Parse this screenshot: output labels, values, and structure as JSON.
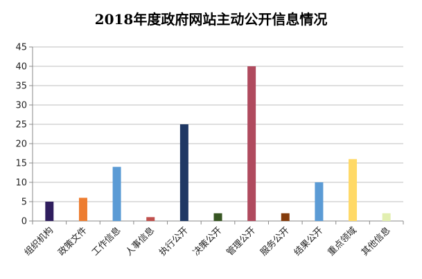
{
  "chart_data": {
    "type": "bar",
    "title": "2018年度政府网站主动公开信息情况",
    "categories": [
      "组织机构",
      "政策文件",
      "工作信息",
      "人事信息",
      "执行公开",
      "决策公开",
      "管理公开",
      "服务公开",
      "结果公开",
      "重点领域",
      "其他信息"
    ],
    "values": [
      5,
      6,
      14,
      1,
      25,
      2,
      40,
      2,
      10,
      16,
      2
    ],
    "colors": [
      "#2f1e5e",
      "#ed7d31",
      "#5b9bd5",
      "#c0504d",
      "#1f3864",
      "#375623",
      "#b04a5e",
      "#843c0c",
      "#5b9bd5",
      "#ffd966",
      "#e2efb0"
    ],
    "ylim": [
      0,
      45
    ],
    "yticks": [
      0,
      5,
      10,
      15,
      20,
      25,
      30,
      35,
      40,
      45
    ],
    "grid": true,
    "legend": "none",
    "xlabel": "",
    "ylabel": ""
  }
}
